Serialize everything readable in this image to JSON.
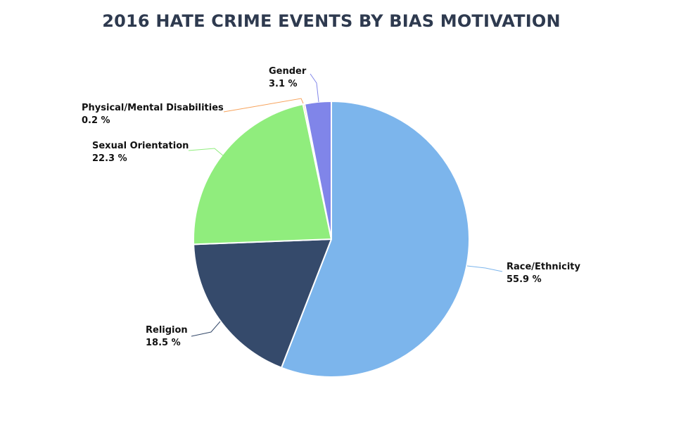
{
  "chart_data": {
    "type": "pie",
    "title": "2016 HATE CRIME EVENTS BY BIAS MOTIVATION",
    "slices": [
      {
        "name": "Race/Ethnicity",
        "value": 55.9,
        "value_label": "55.9 %",
        "color": "#7cb5ec"
      },
      {
        "name": "Religion",
        "value": 18.5,
        "value_label": "18.5 %",
        "color": "#354a6b"
      },
      {
        "name": "Sexual Orientation",
        "value": 22.3,
        "value_label": "22.3 %",
        "color": "#90ed7d"
      },
      {
        "name": "Physical/Mental Disabilities",
        "value": 0.2,
        "value_label": "0.2 %",
        "color": "#f7a35c"
      },
      {
        "name": "Gender",
        "value": 3.1,
        "value_label": "3.1 %",
        "color": "#8085e9"
      }
    ]
  }
}
